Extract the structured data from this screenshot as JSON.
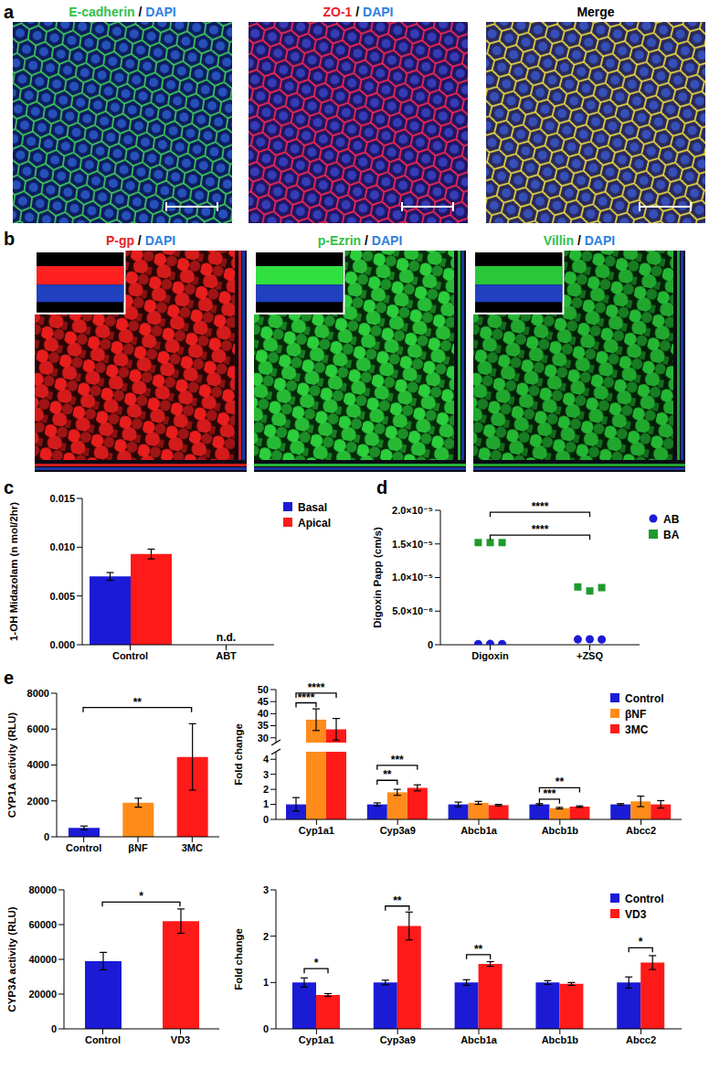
{
  "figure": {
    "panel_labels": [
      "a",
      "b",
      "c",
      "d",
      "e"
    ],
    "images": [
      [
        {
          "title": [
            {
              "text": "E-cadherin",
              "color": "#2fc24a"
            },
            {
              "text": " / "
            },
            {
              "text": "DAPI",
              "color": "#2f7fe0"
            }
          ]
        },
        {
          "title": [
            {
              "text": "ZO-1",
              "color": "#e8202a"
            },
            {
              "text": " / "
            },
            {
              "text": "DAPI",
              "color": "#2f7fe0"
            }
          ]
        },
        {
          "title": [
            {
              "text": "Merge"
            }
          ]
        }
      ],
      [
        {
          "title": [
            {
              "text": "P-gp",
              "color": "#e8202a"
            },
            {
              "text": " / "
            },
            {
              "text": "DAPI",
              "color": "#2f7fe0"
            }
          ]
        },
        {
          "title": [
            {
              "text": "p-Ezrin",
              "color": "#2fc24a"
            },
            {
              "text": " / "
            },
            {
              "text": "DAPI",
              "color": "#2f7fe0"
            }
          ]
        },
        {
          "title": [
            {
              "text": "Villin",
              "color": "#2fc24a"
            },
            {
              "text": " / "
            },
            {
              "text": "DAPI",
              "color": "#2f7fe0"
            }
          ]
        }
      ]
    ]
  },
  "chart_data": [
    {
      "type": "bar",
      "ylabel": "1-OH Midazolam (n mol/2hr)",
      "categories": [
        "Control",
        "ABT"
      ],
      "ylim": [
        0,
        0.015
      ],
      "yticks": [
        {
          "value": 0,
          "label": "0.000"
        },
        0.005,
        {
          "value": 0.01,
          "label": "0.010"
        },
        0.015
      ],
      "legend": "right",
      "series": [
        {
          "name": "Basal",
          "color": "#1b1bd6",
          "values": [
            0.007,
            null
          ],
          "errors": [
            0.0004,
            null
          ]
        },
        {
          "name": "Apical",
          "color": "#ff1a1a",
          "values": [
            0.0093,
            null
          ],
          "errors": [
            0.0005,
            null
          ]
        }
      ],
      "annotations": [
        {
          "text": "n.d.",
          "category": "ABT",
          "y": 0.0004
        }
      ]
    },
    {
      "type": "scatter",
      "ylabel": "Digoxin Papp (cm/s)",
      "xlim": [
        -0.5,
        1.5
      ],
      "xticks": [
        {
          "value": 0,
          "label": "Digoxin"
        },
        {
          "value": 1,
          "label": "+ZSQ"
        }
      ],
      "ylim": [
        0,
        2e-05
      ],
      "yticks": [
        0,
        {
          "value": 5e-06,
          "label": "5.0×10⁻⁶"
        },
        {
          "value": 1e-05,
          "label": "1.0×10⁻⁵"
        },
        {
          "value": 1.5e-05,
          "label": "1.5×10⁻⁵"
        },
        {
          "value": 2e-05,
          "label": "2.0×10⁻⁵"
        }
      ],
      "legend": "right",
      "series": [
        {
          "name": "AB",
          "color": "#1b1bd6",
          "marker": "circle",
          "x": [
            -0.12,
            0,
            0.12,
            0.88,
            1,
            1.12
          ],
          "values": [
            1e-07,
            1.2e-07,
            1.1e-07,
            8e-07,
            8.2e-07,
            7.9e-07
          ]
        },
        {
          "name": "BA",
          "color": "#1f9a2f",
          "marker": "square",
          "x": [
            -0.12,
            0,
            0.12,
            0.88,
            1,
            1.12
          ],
          "values": [
            1.52e-05,
            1.52e-05,
            1.52e-05,
            8.6e-06,
            8e-06,
            8.5e-06
          ]
        }
      ],
      "annotations": [
        {
          "text": "****",
          "x1": 0,
          "x2": 1,
          "y": 1.97e-05
        },
        {
          "text": "****",
          "x1": 0,
          "x2": 1,
          "y": 1.63e-05
        }
      ]
    },
    {
      "type": "bar",
      "ylabel": "CYP1A activity (RLU)",
      "categories": [
        "Control",
        "βNF",
        "3MC"
      ],
      "values": [
        500,
        1900,
        4450
      ],
      "errors": [
        100,
        250,
        1850
      ],
      "colors": [
        "#1b1bd6",
        "#ff8c1a",
        "#ff1a1a"
      ],
      "ylim": [
        0,
        8000
      ],
      "yticks": [
        0,
        2000,
        4000,
        6000,
        8000
      ],
      "annotations": [
        {
          "text": "**",
          "from": "Control",
          "to": "3MC",
          "y": 7200
        }
      ]
    },
    {
      "type": "bar",
      "ylabel": "Fold change",
      "categories": [
        "Cyp1a1",
        "Cyp3a9",
        "Abcb1a",
        "Abcb1b",
        "Abcc2"
      ],
      "ylim": [
        0,
        50
      ],
      "ybreak": [
        4.5,
        28
      ],
      "yticks": [
        0,
        1,
        2,
        3,
        4,
        30,
        35,
        40,
        45,
        50
      ],
      "legend": "top-right",
      "series": [
        {
          "name": "Control",
          "color": "#1b1bd6",
          "values": [
            1,
            1,
            1,
            1,
            1
          ],
          "errors": [
            0.45,
            0.1,
            0.15,
            0.05,
            0.05
          ]
        },
        {
          "name": "βNF",
          "color": "#ff8c1a",
          "values": [
            37.5,
            1.8,
            1.1,
            0.75,
            1.2
          ],
          "errors": [
            4.5,
            0.2,
            0.1,
            0.05,
            0.35
          ]
        },
        {
          "name": "3MC",
          "color": "#ff1a1a",
          "values": [
            33.5,
            2.1,
            0.95,
            0.85,
            1.0
          ],
          "errors": [
            4.5,
            0.2,
            0.05,
            0.05,
            0.25
          ]
        }
      ],
      "annotations": [
        {
          "text": "****",
          "category": "Cyp1a1",
          "from": "Control",
          "to": "βNF",
          "y": 44.5
        },
        {
          "text": "****",
          "category": "Cyp1a1",
          "from": "Control",
          "to": "3MC",
          "y": 48.5
        },
        {
          "text": "**",
          "category": "Cyp3a9",
          "from": "Control",
          "to": "βNF",
          "y": 2.6
        },
        {
          "text": "***",
          "category": "Cyp3a9",
          "from": "Control",
          "to": "3MC",
          "y": 3.6
        },
        {
          "text": "***",
          "category": "Abcb1b",
          "from": "Control",
          "to": "βNF",
          "y": 1.35
        },
        {
          "text": "**",
          "category": "Abcb1b",
          "from": "Control",
          "to": "3MC",
          "y": 2.1
        }
      ]
    },
    {
      "type": "bar",
      "ylabel": "CYP3A activity (RLU)",
      "categories": [
        "Control",
        "VD3"
      ],
      "values": [
        39000,
        62000
      ],
      "errors": [
        5000,
        7000
      ],
      "colors": [
        "#1b1bd6",
        "#ff1a1a"
      ],
      "ylim": [
        0,
        80000
      ],
      "yticks": [
        0,
        20000,
        40000,
        60000,
        80000
      ],
      "annotations": [
        {
          "text": "*",
          "from": "Control",
          "to": "VD3",
          "y": 73000
        }
      ]
    },
    {
      "type": "bar",
      "ylabel": "Fold change",
      "categories": [
        "Cyp1a1",
        "Cyp3a9",
        "Abcb1a",
        "Abcb1b",
        "Abcc2"
      ],
      "ylim": [
        0,
        3
      ],
      "yticks": [
        0,
        1,
        2,
        3
      ],
      "legend": "top-right",
      "series": [
        {
          "name": "Control",
          "color": "#1b1bd6",
          "values": [
            1,
            1,
            1,
            1,
            1
          ],
          "errors": [
            0.1,
            0.05,
            0.06,
            0.04,
            0.12
          ]
        },
        {
          "name": "VD3",
          "color": "#ff1a1a",
          "values": [
            0.73,
            2.22,
            1.4,
            0.97,
            1.43
          ],
          "errors": [
            0.03,
            0.3,
            0.05,
            0.03,
            0.15
          ]
        }
      ],
      "annotations": [
        {
          "text": "*",
          "category": "Cyp1a1",
          "from": "Control",
          "to": "VD3",
          "y": 1.3
        },
        {
          "text": "**",
          "category": "Cyp3a9",
          "from": "Control",
          "to": "VD3",
          "y": 2.65
        },
        {
          "text": "**",
          "category": "Abcb1a",
          "from": "Control",
          "to": "VD3",
          "y": 1.6
        },
        {
          "text": "*",
          "category": "Abcc2",
          "from": "Control",
          "to": "VD3",
          "y": 1.75
        }
      ]
    }
  ]
}
